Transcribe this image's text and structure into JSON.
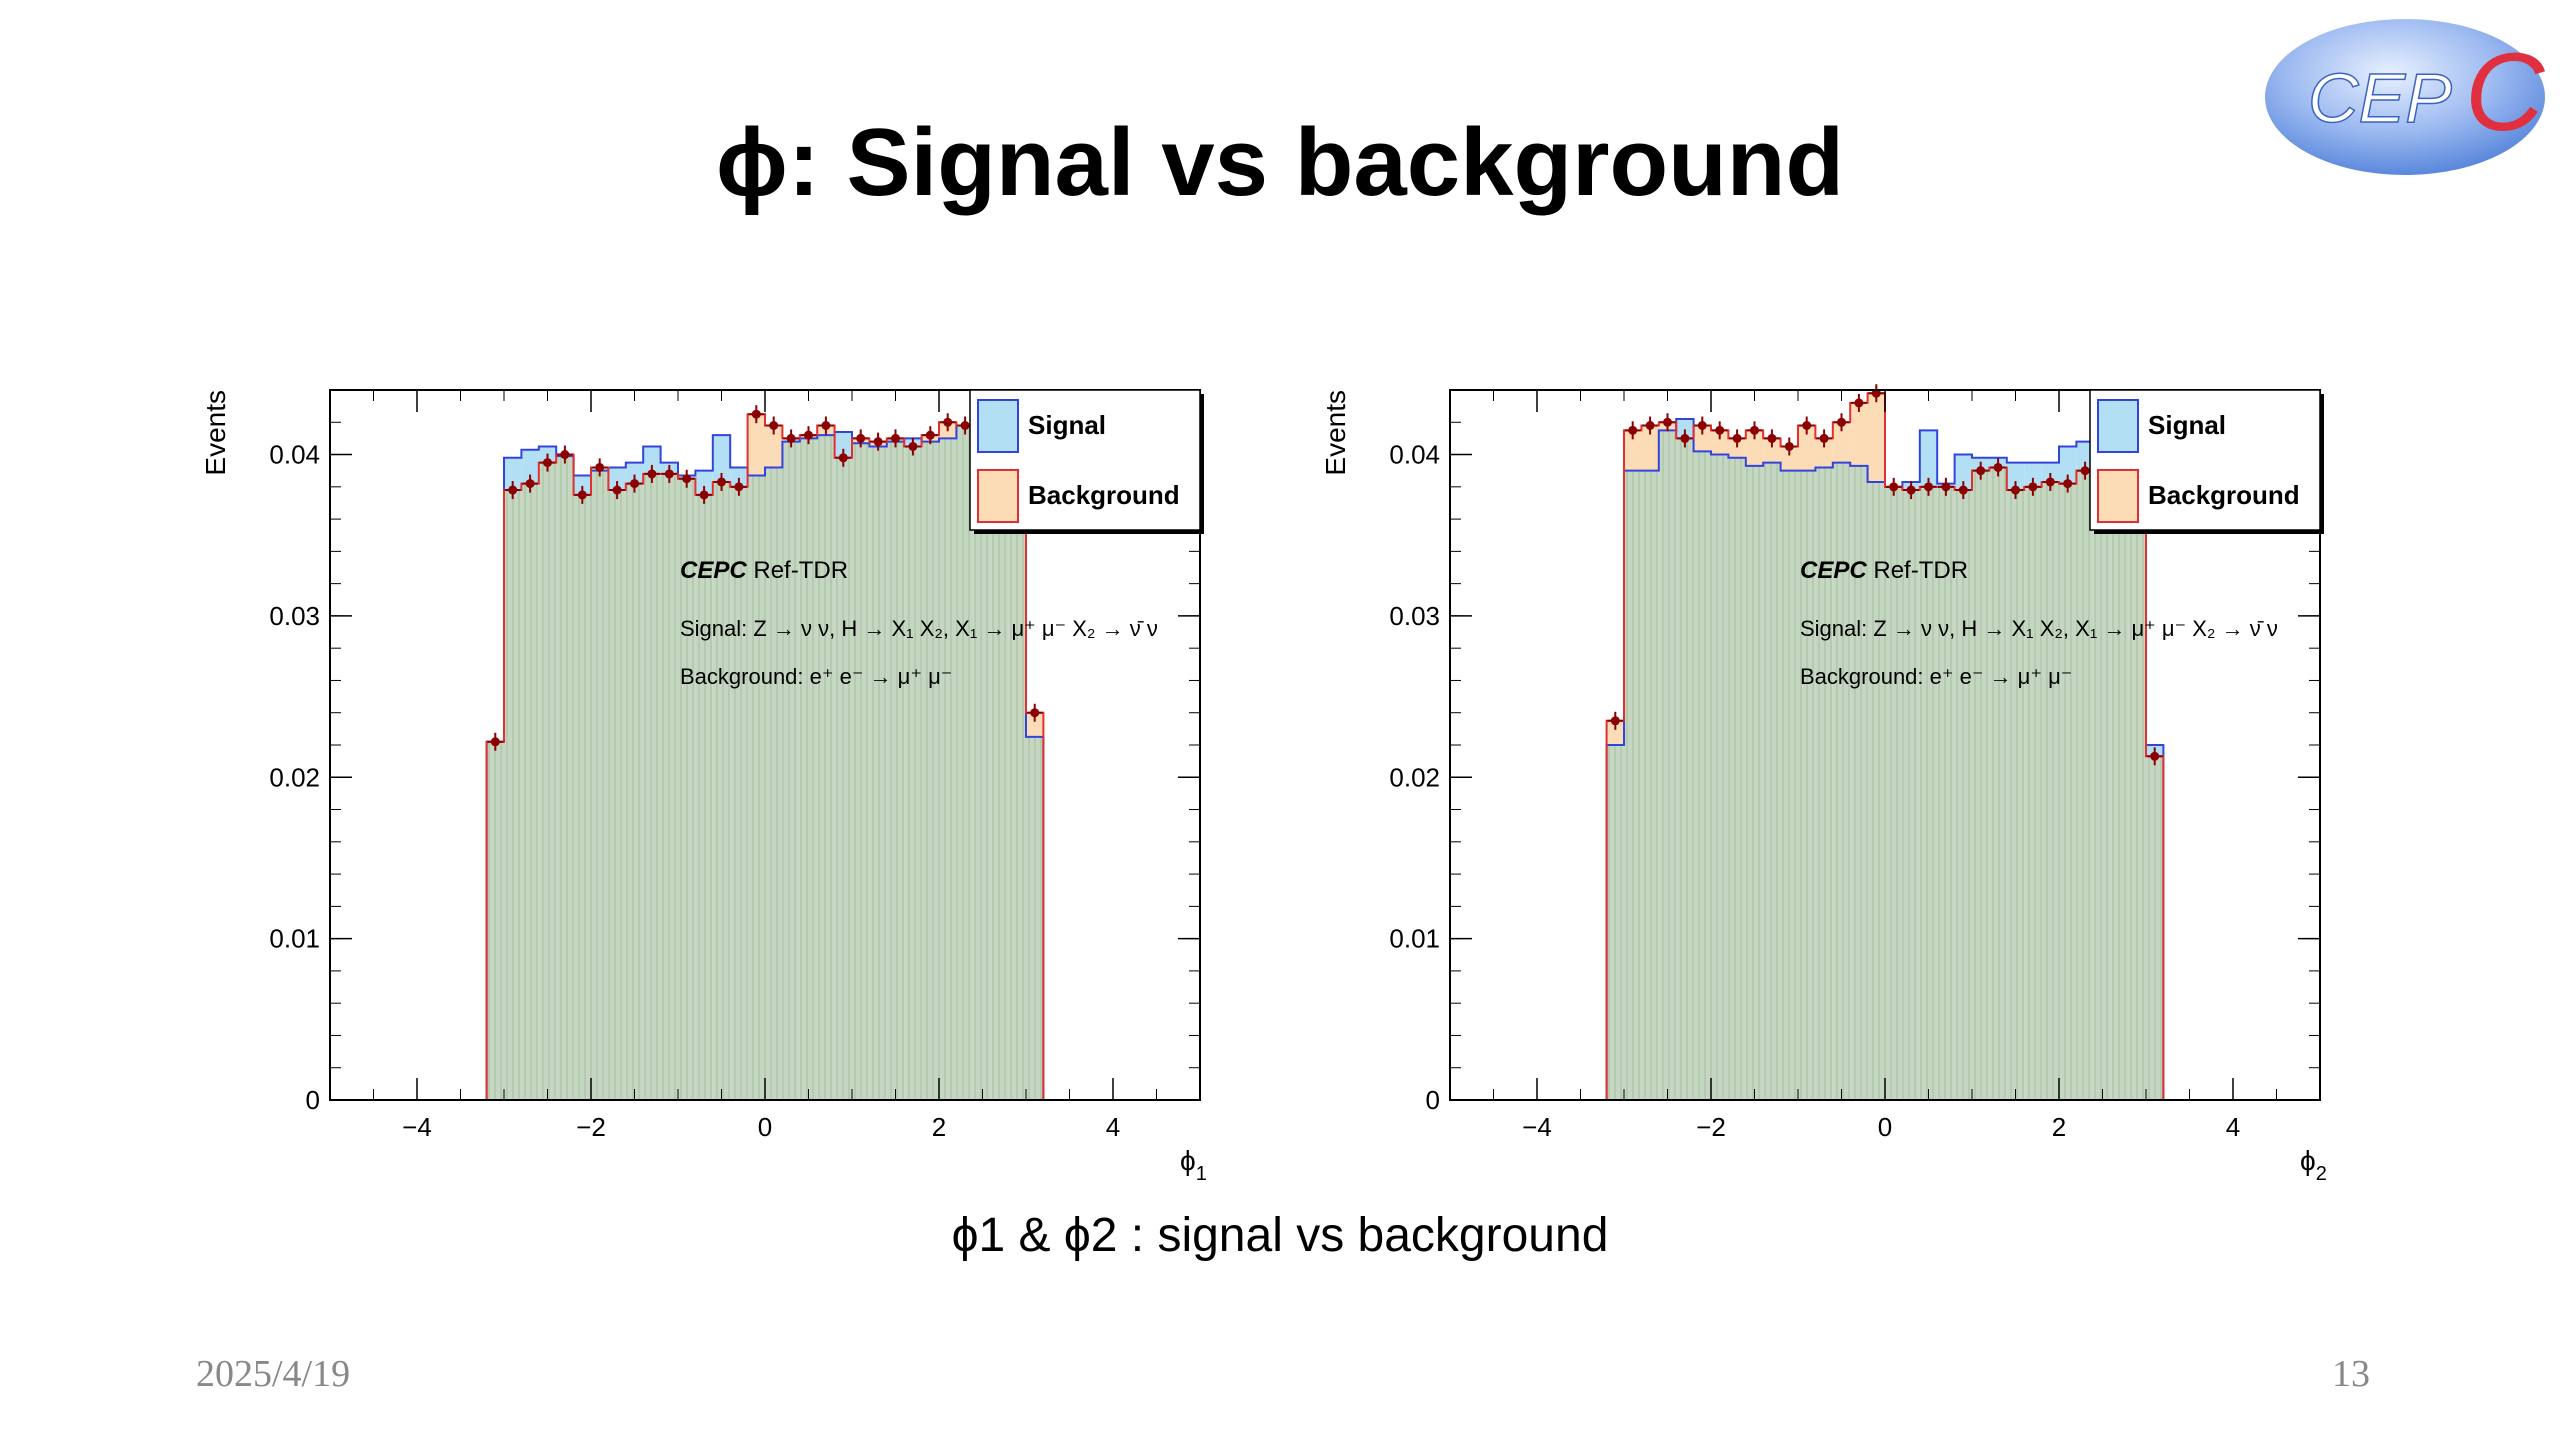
{
  "slide": {
    "title": "ϕ: Signal vs background",
    "caption": "ϕ1 & ϕ2 : signal vs background",
    "date": "2025/4/19",
    "page_number": "13",
    "logo_text": "CEPC"
  },
  "colors": {
    "signal_line": "#3344dd",
    "signal_fill": "#b3dff5",
    "background_line": "#e03030",
    "background_fill": "#fbdcb6",
    "overlap_fill": "#c5d7c2",
    "overlap_hatch": "#a9c3a3",
    "marker": "#8b0000",
    "logo_blue": "#5a8de0",
    "logo_red": "#e03040"
  },
  "chart_data": [
    {
      "type": "histogram",
      "ylabel": "Events",
      "xlabel_main": "ϕ",
      "xlabel_sub": "1",
      "xlim": [
        -5,
        5
      ],
      "ylim": [
        0,
        0.044
      ],
      "xticks": [
        -4,
        -2,
        0,
        2,
        4
      ],
      "yticks": [
        0,
        0.01,
        0.02,
        0.03,
        0.04
      ],
      "ytick_labels": [
        "0",
        "0.01",
        "0.02",
        "0.03",
        "0.04"
      ],
      "xtick_labels": [
        "−4",
        "−2",
        "0",
        "2",
        "4"
      ],
      "bin_edges_start": -3.2,
      "bin_width": 0.2,
      "grid": false,
      "legend_position": "top-right",
      "legend": [
        {
          "name": "Signal",
          "style": "signal"
        },
        {
          "name": "Background",
          "style": "background"
        }
      ],
      "annotations": {
        "experiment": "CEPC",
        "experiment_suffix": " Ref-TDR",
        "signal_text": "Signal: Z → ν ν, H → X₁ X₂, X₁ → μ⁺ μ⁻ X₂ → ν̄ ν",
        "background_text": "Background:  e⁺ e⁻ → μ⁺ μ⁻"
      },
      "series": [
        {
          "name": "Signal",
          "values": [
            0.0222,
            0.0398,
            0.0403,
            0.0405,
            0.0399,
            0.0387,
            0.039,
            0.0392,
            0.0395,
            0.0405,
            0.0395,
            0.0387,
            0.039,
            0.0412,
            0.0392,
            0.0387,
            0.0392,
            0.0408,
            0.041,
            0.0412,
            0.0414,
            0.0407,
            0.0405,
            0.0408,
            0.041,
            0.0408,
            0.041,
            0.0418,
            0.0412,
            0.0396,
            0.0368,
            0.0225
          ]
        },
        {
          "name": "Background",
          "values": [
            0.0222,
            0.0378,
            0.0382,
            0.0395,
            0.04,
            0.0375,
            0.0392,
            0.0378,
            0.0382,
            0.0388,
            0.0388,
            0.0385,
            0.0375,
            0.0383,
            0.038,
            0.0425,
            0.0418,
            0.041,
            0.0412,
            0.0418,
            0.0398,
            0.041,
            0.0408,
            0.041,
            0.0405,
            0.0412,
            0.042,
            0.0418,
            0.041,
            0.041,
            0.0392,
            0.024
          ]
        }
      ]
    },
    {
      "type": "histogram",
      "ylabel": "Events",
      "xlabel_main": "ϕ",
      "xlabel_sub": "2",
      "xlim": [
        -5,
        5
      ],
      "ylim": [
        0,
        0.044
      ],
      "xticks": [
        -4,
        -2,
        0,
        2,
        4
      ],
      "yticks": [
        0,
        0.01,
        0.02,
        0.03,
        0.04
      ],
      "ytick_labels": [
        "0",
        "0.01",
        "0.02",
        "0.03",
        "0.04"
      ],
      "xtick_labels": [
        "−4",
        "−2",
        "0",
        "2",
        "4"
      ],
      "bin_edges_start": -3.2,
      "bin_width": 0.2,
      "grid": false,
      "legend_position": "top-right",
      "legend": [
        {
          "name": "Signal",
          "style": "signal"
        },
        {
          "name": "Background",
          "style": "background"
        }
      ],
      "annotations": {
        "experiment": "CEPC",
        "experiment_suffix": " Ref-TDR",
        "signal_text": "Signal: Z → ν ν, H → X₁ X₂, X₁ → μ⁺ μ⁻ X₂ → ν̄ ν",
        "background_text": "Background:  e⁺ e⁻ → μ⁺ μ⁻"
      },
      "series": [
        {
          "name": "Signal",
          "values": [
            0.022,
            0.039,
            0.039,
            0.0415,
            0.0422,
            0.0402,
            0.04,
            0.0398,
            0.0393,
            0.0395,
            0.039,
            0.039,
            0.0392,
            0.0395,
            0.0393,
            0.0383,
            0.038,
            0.0383,
            0.0415,
            0.0382,
            0.04,
            0.0398,
            0.0398,
            0.0395,
            0.0395,
            0.0395,
            0.0405,
            0.0408,
            0.0398,
            0.0392,
            0.0393,
            0.022
          ]
        },
        {
          "name": "Background",
          "values": [
            0.0235,
            0.0415,
            0.0418,
            0.042,
            0.041,
            0.0418,
            0.0415,
            0.041,
            0.0415,
            0.041,
            0.0405,
            0.0418,
            0.041,
            0.042,
            0.0432,
            0.0438,
            0.038,
            0.0378,
            0.038,
            0.038,
            0.0378,
            0.039,
            0.0392,
            0.0378,
            0.038,
            0.0383,
            0.0382,
            0.039,
            0.0388,
            0.0378,
            0.038,
            0.0213
          ]
        }
      ]
    }
  ]
}
